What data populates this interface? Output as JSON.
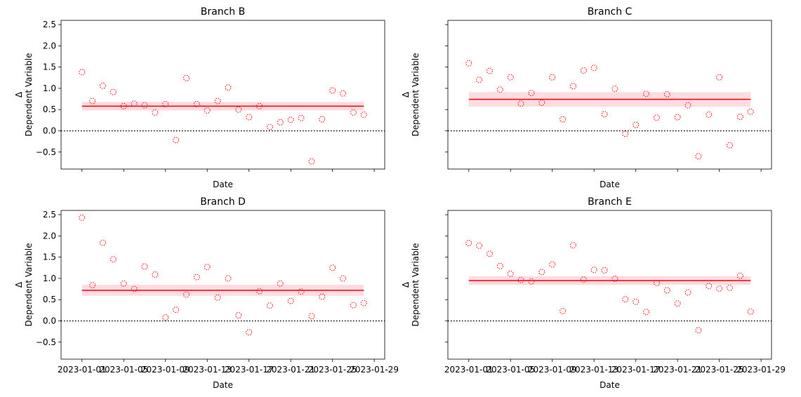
{
  "colors": {
    "points": "#ff0000",
    "mean_line": "#ff0000",
    "band": "#ffc0cb",
    "zero_line": "#000000"
  },
  "chart_data": [
    {
      "type": "scatter",
      "title": "Branch B",
      "xlabel": "Date",
      "ylabel_lines": [
        "Δ",
        "Dependent Variable"
      ],
      "show_xticklabels": false,
      "show_yticklabels": true,
      "x": [
        "2023-01-01",
        "2023-01-02",
        "2023-01-03",
        "2023-01-04",
        "2023-01-05",
        "2023-01-06",
        "2023-01-07",
        "2023-01-08",
        "2023-01-09",
        "2023-01-10",
        "2023-01-11",
        "2023-01-12",
        "2023-01-13",
        "2023-01-14",
        "2023-01-15",
        "2023-01-16",
        "2023-01-17",
        "2023-01-18",
        "2023-01-19",
        "2023-01-20",
        "2023-01-21",
        "2023-01-22",
        "2023-01-23",
        "2023-01-24",
        "2023-01-25",
        "2023-01-26",
        "2023-01-27",
        "2023-01-28"
      ],
      "y": [
        1.38,
        0.7,
        1.06,
        0.91,
        0.58,
        0.64,
        0.6,
        0.43,
        0.63,
        -0.22,
        1.24,
        0.63,
        0.48,
        0.7,
        1.02,
        0.5,
        0.32,
        0.58,
        0.09,
        0.2,
        0.26,
        0.3,
        -0.72,
        0.27,
        0.95,
        0.88,
        0.43,
        0.38
      ],
      "mean": 0.58,
      "band": [
        0.48,
        0.68
      ],
      "xticks": [
        "2023-01-01",
        "2023-01-05",
        "2023-01-09",
        "2023-01-13",
        "2023-01-17",
        "2023-01-21",
        "2023-01-25",
        "2023-01-29"
      ],
      "yticks": [
        -0.5,
        0.0,
        0.5,
        1.0,
        1.5,
        2.0,
        2.5
      ],
      "ylim": [
        -0.9,
        2.6
      ]
    },
    {
      "type": "scatter",
      "title": "Branch C",
      "xlabel": "Date",
      "ylabel_lines": [
        "Δ",
        "Dependent Variable"
      ],
      "show_xticklabels": false,
      "show_yticklabels": false,
      "x": [
        "2023-01-01",
        "2023-01-02",
        "2023-01-03",
        "2023-01-04",
        "2023-01-05",
        "2023-01-06",
        "2023-01-07",
        "2023-01-08",
        "2023-01-09",
        "2023-01-10",
        "2023-01-11",
        "2023-01-12",
        "2023-01-13",
        "2023-01-14",
        "2023-01-15",
        "2023-01-16",
        "2023-01-17",
        "2023-01-18",
        "2023-01-19",
        "2023-01-20",
        "2023-01-21",
        "2023-01-22",
        "2023-01-23",
        "2023-01-24",
        "2023-01-25",
        "2023-01-26",
        "2023-01-27",
        "2023-01-28"
      ],
      "y": [
        1.59,
        1.2,
        1.41,
        0.97,
        1.26,
        0.64,
        0.89,
        0.66,
        1.26,
        0.27,
        1.05,
        1.42,
        1.48,
        0.39,
        0.99,
        -0.07,
        0.14,
        0.87,
        0.31,
        0.86,
        0.32,
        0.6,
        -0.6,
        0.38,
        1.26,
        -0.34,
        0.33,
        0.45
      ],
      "mean": 0.74,
      "band": [
        0.57,
        0.91
      ],
      "xticks": [
        "2023-01-01",
        "2023-01-05",
        "2023-01-09",
        "2023-01-13",
        "2023-01-17",
        "2023-01-21",
        "2023-01-25",
        "2023-01-29"
      ],
      "yticks": [
        -0.5,
        0.0,
        0.5,
        1.0,
        1.5,
        2.0,
        2.5
      ],
      "ylim": [
        -0.9,
        2.6
      ]
    },
    {
      "type": "scatter",
      "title": "Branch D",
      "xlabel": "Date",
      "ylabel_lines": [
        "Δ",
        "Dependent Variable"
      ],
      "show_xticklabels": true,
      "show_yticklabels": true,
      "x": [
        "2023-01-01",
        "2023-01-02",
        "2023-01-03",
        "2023-01-04",
        "2023-01-05",
        "2023-01-06",
        "2023-01-07",
        "2023-01-08",
        "2023-01-09",
        "2023-01-10",
        "2023-01-11",
        "2023-01-12",
        "2023-01-13",
        "2023-01-14",
        "2023-01-15",
        "2023-01-16",
        "2023-01-17",
        "2023-01-18",
        "2023-01-19",
        "2023-01-20",
        "2023-01-21",
        "2023-01-22",
        "2023-01-23",
        "2023-01-24",
        "2023-01-25",
        "2023-01-26",
        "2023-01-27",
        "2023-01-28"
      ],
      "y": [
        2.43,
        0.84,
        1.84,
        1.45,
        0.88,
        0.75,
        1.28,
        1.09,
        0.08,
        0.26,
        0.62,
        1.03,
        1.27,
        0.55,
        1.0,
        0.13,
        -0.27,
        0.7,
        0.36,
        0.88,
        0.47,
        0.69,
        0.11,
        0.57,
        1.25,
        1.0,
        0.37,
        0.42
      ],
      "mean": 0.72,
      "band": [
        0.59,
        0.85
      ],
      "xticks": [
        "2023-01-01",
        "2023-01-05",
        "2023-01-09",
        "2023-01-13",
        "2023-01-17",
        "2023-01-21",
        "2023-01-25",
        "2023-01-29"
      ],
      "yticks": [
        -0.5,
        0.0,
        0.5,
        1.0,
        1.5,
        2.0,
        2.5
      ],
      "ylim": [
        -0.9,
        2.6
      ]
    },
    {
      "type": "scatter",
      "title": "Branch E",
      "xlabel": "Date",
      "ylabel_lines": [
        "Δ",
        "Dependent Variable"
      ],
      "show_xticklabels": true,
      "show_yticklabels": false,
      "x": [
        "2023-01-01",
        "2023-01-02",
        "2023-01-03",
        "2023-01-04",
        "2023-01-05",
        "2023-01-06",
        "2023-01-07",
        "2023-01-08",
        "2023-01-09",
        "2023-01-10",
        "2023-01-11",
        "2023-01-12",
        "2023-01-13",
        "2023-01-14",
        "2023-01-15",
        "2023-01-16",
        "2023-01-17",
        "2023-01-18",
        "2023-01-19",
        "2023-01-20",
        "2023-01-21",
        "2023-01-22",
        "2023-01-23",
        "2023-01-24",
        "2023-01-25",
        "2023-01-26",
        "2023-01-27",
        "2023-01-28"
      ],
      "y": [
        1.83,
        1.77,
        1.58,
        1.29,
        1.11,
        0.96,
        0.93,
        1.15,
        1.33,
        0.23,
        1.78,
        0.97,
        1.2,
        1.19,
        0.99,
        0.51,
        0.45,
        0.21,
        0.89,
        0.72,
        0.41,
        0.67,
        -0.22,
        0.82,
        0.76,
        0.78,
        1.06,
        0.22
      ],
      "mean": 0.95,
      "band": [
        0.85,
        1.05
      ],
      "xticks": [
        "2023-01-01",
        "2023-01-05",
        "2023-01-09",
        "2023-01-13",
        "2023-01-17",
        "2023-01-21",
        "2023-01-25",
        "2023-01-29"
      ],
      "yticks": [
        -0.5,
        0.0,
        0.5,
        1.0,
        1.5,
        2.0,
        2.5
      ],
      "ylim": [
        -0.9,
        2.6
      ]
    }
  ]
}
